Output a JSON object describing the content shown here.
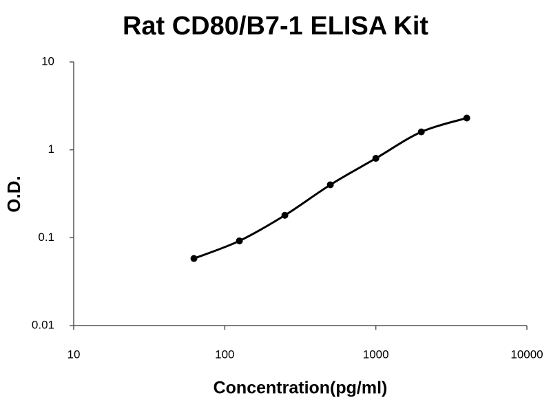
{
  "chart_data": {
    "type": "scatter",
    "title": "Rat CD80/B7-1 ELISA Kit",
    "x_label": "Concentration(pg/ml)",
    "y_label": "O.D.",
    "x": [
      62.5,
      125,
      250,
      500,
      1000,
      2000,
      4000
    ],
    "series": [
      {
        "color": "#000000",
        "values": [
          0.058,
          0.092,
          0.18,
          0.4,
          0.8,
          1.6,
          2.3
        ]
      }
    ],
    "smooth_line": true,
    "x_log": true,
    "y_log": true,
    "xlim": [
      10,
      10000
    ],
    "ylim": [
      0.01,
      10
    ],
    "xticks": [
      10,
      100,
      1000,
      10000
    ],
    "yticks": [
      0.01,
      0.1,
      1,
      10
    ]
  }
}
